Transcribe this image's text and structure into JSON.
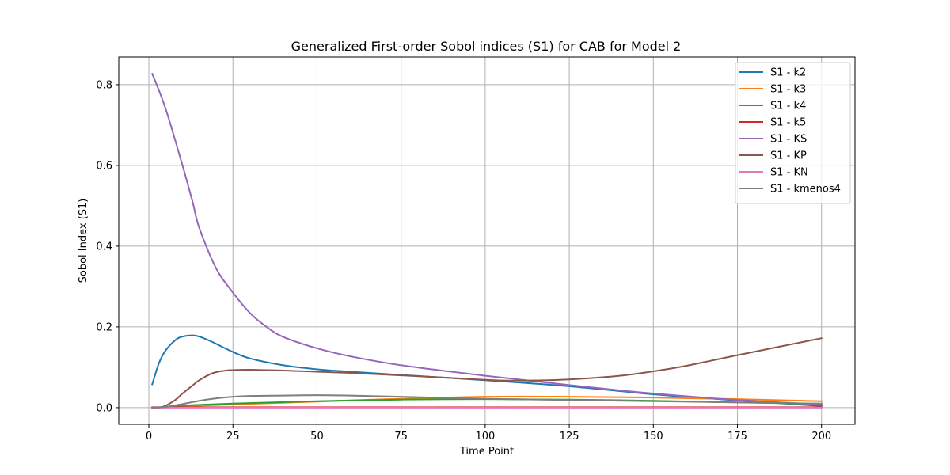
{
  "chart_data": {
    "type": "line",
    "title": "Generalized First-order Sobol indices (S1) for CAB for Model 2",
    "xlabel": "Time Point",
    "ylabel": "Sobol Index (S1)",
    "xlim": [
      -8.95,
      209.95
    ],
    "ylim": [
      -0.0414,
      0.8685
    ],
    "xticks": [
      0,
      25,
      50,
      75,
      100,
      125,
      150,
      175,
      200
    ],
    "yticks": [
      0.0,
      0.2,
      0.4,
      0.6,
      0.8
    ],
    "ytick_labels": [
      "0.0",
      "0.2",
      "0.4",
      "0.6",
      "0.8"
    ],
    "grid": true,
    "legend_position": "top-right",
    "series": [
      {
        "name": "S1 - k2",
        "color": "#1f77b4",
        "x": [
          1,
          3,
          5,
          8,
          10,
          13,
          15,
          18,
          20,
          25,
          30,
          40,
          50,
          60,
          75,
          100,
          125,
          150,
          175,
          200
        ],
        "y": [
          0.058,
          0.11,
          0.142,
          0.168,
          0.176,
          0.179,
          0.176,
          0.166,
          0.158,
          0.138,
          0.122,
          0.105,
          0.095,
          0.089,
          0.081,
          0.068,
          0.053,
          0.033,
          0.018,
          0.004
        ]
      },
      {
        "name": "S1 - k3",
        "color": "#ff7f0e",
        "x": [
          1,
          5,
          10,
          25,
          50,
          75,
          100,
          125,
          150,
          175,
          200
        ],
        "y": [
          0.0,
          0.001,
          0.003,
          0.008,
          0.015,
          0.022,
          0.027,
          0.027,
          0.025,
          0.021,
          0.016
        ]
      },
      {
        "name": "S1 - k4",
        "color": "#2ca02c",
        "x": [
          1,
          5,
          10,
          25,
          50,
          75,
          100,
          125,
          150,
          175,
          200
        ],
        "y": [
          0.0,
          0.002,
          0.005,
          0.01,
          0.016,
          0.02,
          0.021,
          0.02,
          0.017,
          0.013,
          0.009
        ]
      },
      {
        "name": "S1 - k5",
        "color": "#d62728",
        "x": [
          1,
          50,
          100,
          150,
          200
        ],
        "y": [
          0.001,
          0.001,
          0.001,
          0.001,
          0.001
        ]
      },
      {
        "name": "S1 - KS",
        "color": "#9467bd",
        "x": [
          1,
          5,
          10,
          13,
          15,
          20,
          25,
          30,
          35,
          40,
          50,
          60,
          75,
          100,
          125,
          150,
          175,
          200
        ],
        "y": [
          0.827,
          0.74,
          0.6,
          0.51,
          0.445,
          0.345,
          0.285,
          0.235,
          0.2,
          0.175,
          0.147,
          0.127,
          0.105,
          0.079,
          0.056,
          0.035,
          0.019,
          0.008
        ]
      },
      {
        "name": "S1 - KP",
        "color": "#8c564b",
        "x": [
          1,
          3,
          5,
          8,
          10,
          13,
          15,
          18,
          20,
          23,
          25,
          30,
          40,
          50,
          60,
          75,
          100,
          110,
          125,
          140,
          150,
          160,
          175,
          200
        ],
        "y": [
          0.0,
          0.0,
          0.005,
          0.02,
          0.035,
          0.055,
          0.068,
          0.082,
          0.088,
          0.092,
          0.093,
          0.094,
          0.092,
          0.089,
          0.086,
          0.08,
          0.069,
          0.067,
          0.07,
          0.079,
          0.09,
          0.104,
          0.13,
          0.172
        ]
      },
      {
        "name": "S1 - KN",
        "color": "#e377c2",
        "x": [
          1,
          50,
          100,
          150,
          200
        ],
        "y": [
          0.0,
          0.0,
          0.0,
          0.0,
          0.0
        ]
      },
      {
        "name": "S1 - kmenos4",
        "color": "#7f7f7f",
        "x": [
          1,
          5,
          10,
          15,
          20,
          25,
          30,
          40,
          50,
          60,
          75,
          100,
          125,
          150,
          175,
          200
        ],
        "y": [
          0.0,
          0.002,
          0.009,
          0.017,
          0.023,
          0.027,
          0.029,
          0.03,
          0.031,
          0.03,
          0.027,
          0.022,
          0.019,
          0.016,
          0.013,
          0.01
        ]
      }
    ]
  }
}
